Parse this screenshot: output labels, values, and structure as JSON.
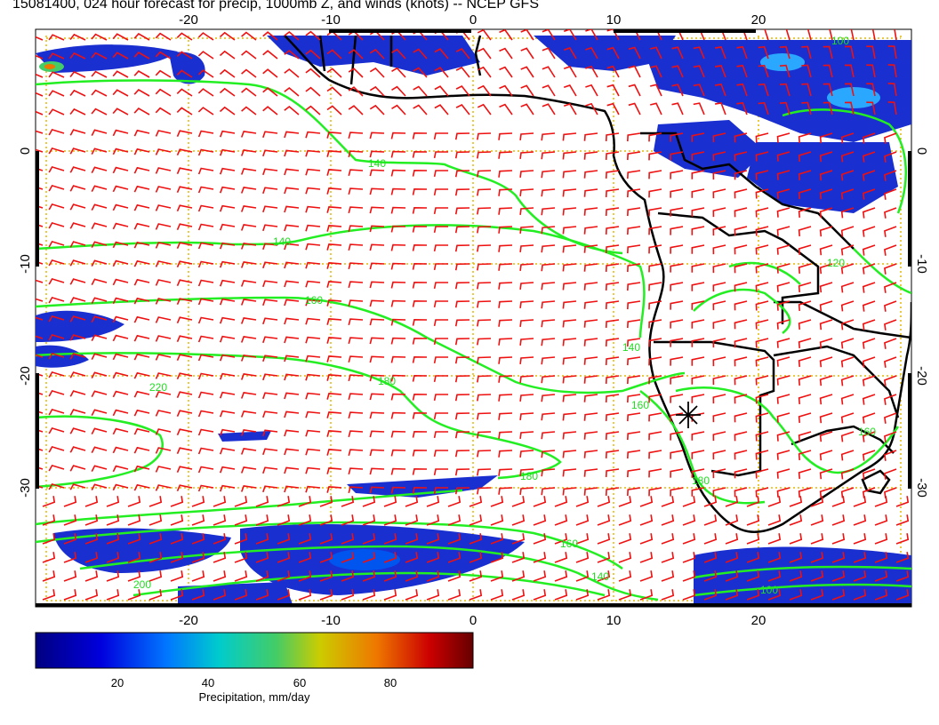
{
  "title": "15081400, 024 hour forecast for precip, 1000mb Z, and winds (knots) -- NCEP GFS",
  "map": {
    "lon_range": [
      -30,
      30
    ],
    "lat_range": [
      -40,
      10
    ],
    "lon_ticks": [
      "-20",
      "-10",
      "0",
      "10",
      "20"
    ],
    "lat_ticks": [
      "0",
      "-10",
      "-20",
      "-30"
    ],
    "grid_style": "dotted",
    "colors": {
      "contour": "#22ee22",
      "wind_barb": "#ee1111",
      "coastline": "#000000",
      "grid": "#e6b800"
    },
    "contour_labels": [
      "140",
      "160",
      "180",
      "200",
      "220",
      "140",
      "160",
      "180",
      "160",
      "140",
      "120",
      "100",
      "160",
      "200",
      "140",
      "180"
    ],
    "marker": "star-marker"
  },
  "colorbar": {
    "label": "Precipitation, mm/day",
    "ticks": [
      "20",
      "40",
      "60",
      "80"
    ],
    "range": [
      0,
      100
    ]
  }
}
